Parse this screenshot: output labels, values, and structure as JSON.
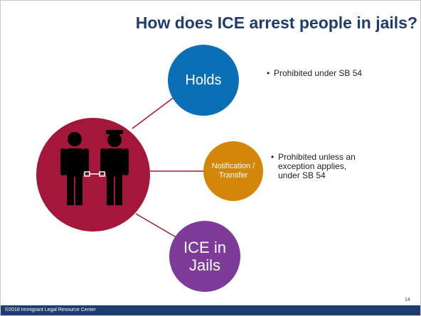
{
  "title": "How does ICE arrest people in jails?",
  "nodes": [
    {
      "label": "Holds",
      "note": "Prohibited under SB 54"
    },
    {
      "label": "Notification / Transfer",
      "note": "Prohibited unless an exception applies, under SB 54"
    },
    {
      "label": "ICE in Jails"
    }
  ],
  "footer": "©2018 Immigrant Legal Resource Center",
  "page_number": "14"
}
